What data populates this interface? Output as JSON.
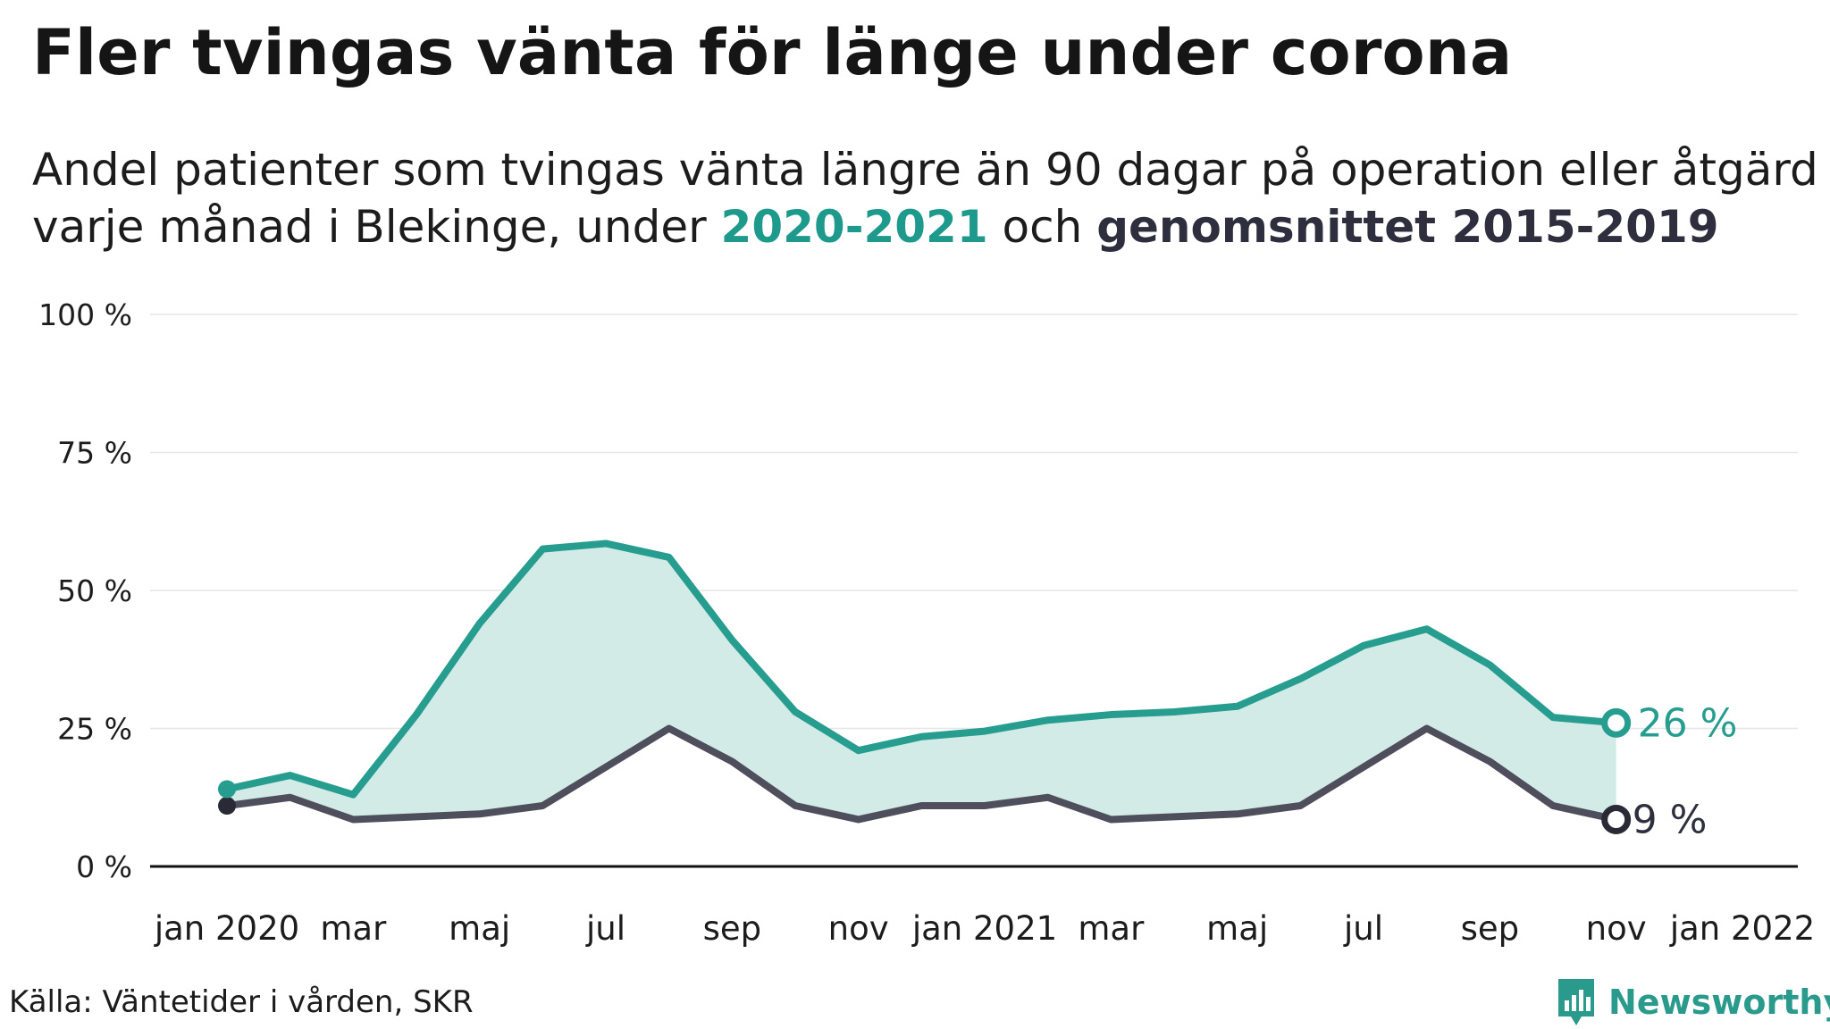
{
  "header": {
    "title": "Fler tvingas vänta för länge under corona",
    "subtitle_line1": "Andel patienter som tvingas vänta längre än 90 dagar på operation eller åtgärd",
    "subtitle_line2_pre": "varje månad i Blekinge, under ",
    "subtitle_line2_hl1": "2020-2021",
    "subtitle_line2_mid": " och ",
    "subtitle_line2_hl2": "genomsnittet 2015-2019"
  },
  "footer": {
    "source": "Källa: Väntetider i vården, SKR",
    "brand": "Newsworthy"
  },
  "colors": {
    "series_2020_2021": "#269d8f",
    "series_avg": "#4e4e5c",
    "fill": "#d2ebe7",
    "grid": "#e6e6e6",
    "axis": "#111111",
    "brand": "#2a9a8c"
  },
  "chart_data": {
    "type": "line",
    "x": [
      "2020-01",
      "2020-02",
      "2020-03",
      "2020-04",
      "2020-05",
      "2020-06",
      "2020-07",
      "2020-08",
      "2020-09",
      "2020-10",
      "2020-11",
      "2020-12",
      "2021-01",
      "2021-02",
      "2021-03",
      "2021-04",
      "2021-05",
      "2021-06",
      "2021-07",
      "2021-08",
      "2021-09",
      "2021-10",
      "2021-11"
    ],
    "x_ticks": [
      {
        "x": "2020-01",
        "label": "jan 2020"
      },
      {
        "x": "2020-03",
        "label": "mar"
      },
      {
        "x": "2020-05",
        "label": "maj"
      },
      {
        "x": "2020-07",
        "label": "jul"
      },
      {
        "x": "2020-09",
        "label": "sep"
      },
      {
        "x": "2020-11",
        "label": "nov"
      },
      {
        "x": "2021-01",
        "label": "jan 2021"
      },
      {
        "x": "2021-03",
        "label": "mar"
      },
      {
        "x": "2021-05",
        "label": "maj"
      },
      {
        "x": "2021-07",
        "label": "jul"
      },
      {
        "x": "2021-09",
        "label": "sep"
      },
      {
        "x": "2021-11",
        "label": "nov"
      },
      {
        "x": "2022-01",
        "label": "jan 2022"
      }
    ],
    "xlim": [
      "2020-01",
      "2022-01"
    ],
    "y_ticks": [
      {
        "value": 0,
        "label": "0 %"
      },
      {
        "value": 25,
        "label": "25 %"
      },
      {
        "value": 50,
        "label": "50 %"
      },
      {
        "value": 75,
        "label": "75 %"
      },
      {
        "value": 100,
        "label": "100 %"
      }
    ],
    "ylim": [
      0,
      100
    ],
    "grid": true,
    "series": [
      {
        "name": "2020-2021",
        "values": [
          14,
          16.5,
          13,
          27.5,
          44,
          57.5,
          58.5,
          56,
          41,
          28,
          21,
          23.5,
          24.5,
          26.5,
          27.5,
          28,
          29,
          34,
          40,
          43,
          36.5,
          27,
          26
        ],
        "end_label": "26 %"
      },
      {
        "name": "genomsnittet 2015-2019",
        "values": [
          11,
          12.5,
          8.5,
          9,
          9.5,
          11,
          18,
          25,
          19,
          11,
          8.5,
          11,
          11,
          12.5,
          8.5,
          9,
          9.5,
          11,
          18,
          25,
          19,
          11,
          8.5
        ],
        "end_label": "9 %"
      }
    ]
  }
}
